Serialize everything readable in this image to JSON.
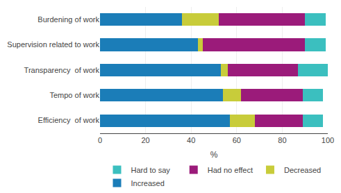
{
  "chart_data": {
    "type": "bar",
    "orientation": "horizontal",
    "stacked": true,
    "categories": [
      "Burdening of work",
      "Supervision related to work",
      "Transparency  of work",
      "Tempo of work",
      "Efficiency  of work"
    ],
    "series": [
      {
        "name": "Increased",
        "color": "#1b7db8",
        "values": [
          36,
          43,
          53,
          54,
          57
        ]
      },
      {
        "name": "Decreased",
        "color": "#c8cc3a",
        "values": [
          16,
          2,
          3,
          8,
          11
        ]
      },
      {
        "name": "Had no effect",
        "color": "#9b1b7a",
        "values": [
          38,
          45,
          31,
          27,
          21
        ]
      },
      {
        "name": "Hard to say",
        "color": "#3bbfbf",
        "values": [
          9,
          9,
          13,
          9,
          9
        ]
      }
    ],
    "xlabel": "%",
    "xlim": [
      0,
      100
    ],
    "xticks": [
      0,
      20,
      40,
      60,
      80,
      100
    ],
    "grid": true,
    "legend": "bottom"
  }
}
